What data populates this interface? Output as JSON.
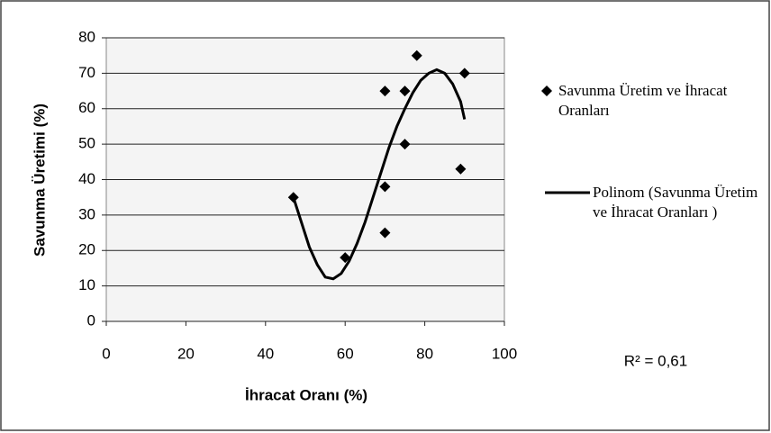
{
  "chart_data": {
    "type": "scatter",
    "xlabel": "İhracat Oranı (%)",
    "ylabel": "Savunma Üretimi (%)",
    "xlim": [
      0,
      100
    ],
    "xticks": [
      0,
      20,
      40,
      60,
      80,
      100
    ],
    "ylim": [
      0,
      80
    ],
    "yticks": [
      0,
      10,
      20,
      30,
      40,
      50,
      60,
      70,
      80
    ],
    "grid": true,
    "series": [
      {
        "name": "Savunma Üretim ve İhracat Oranları",
        "color": "#000000",
        "marker": "diamond",
        "x": [
          47,
          60,
          70,
          70,
          70,
          75,
          75,
          78,
          89,
          90
        ],
        "values": [
          35,
          18,
          65,
          38,
          25,
          65,
          50,
          75,
          43,
          70
        ]
      },
      {
        "name": "Polinom (Savunma Üretim ve İhracat Oranları )",
        "color": "#000000",
        "kind": "line",
        "x": [
          47,
          49,
          51,
          53,
          55,
          57,
          59,
          61,
          63,
          65,
          67,
          69,
          71,
          73,
          75,
          77,
          79,
          81,
          83,
          85,
          87,
          89,
          90
        ],
        "values": [
          35,
          28,
          21,
          16,
          12.5,
          12,
          13.5,
          17,
          22,
          28,
          35,
          42,
          49,
          55,
          60,
          64.5,
          68,
          70,
          71,
          70,
          67,
          62,
          57
        ]
      }
    ],
    "annotation": "R² = 0,61"
  }
}
